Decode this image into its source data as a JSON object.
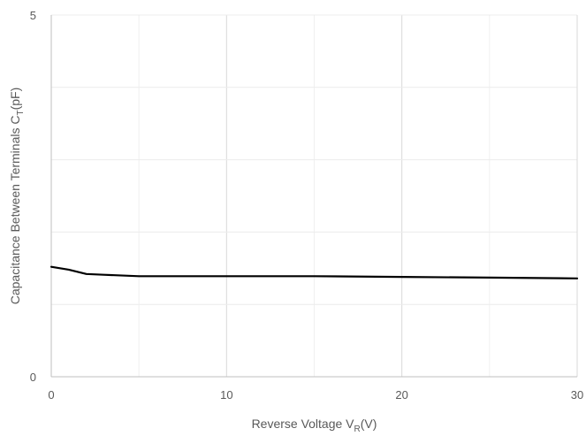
{
  "chart_data": {
    "type": "line",
    "xlabel": {
      "main": "Reverse Voltage V",
      "sub": "R",
      "suffix": "(V)"
    },
    "ylabel": {
      "main": "Capacitance Between Terminals C",
      "sub": "T",
      "suffix": "(pF)"
    },
    "xlim": [
      0,
      30
    ],
    "ylim": [
      0,
      5
    ],
    "x_ticks": [
      0,
      10,
      20,
      30
    ],
    "y_ticks": [
      0,
      5
    ],
    "x_tick_labels": [
      "0",
      "10",
      "20",
      "30"
    ],
    "y_tick_labels": [
      "0",
      "5"
    ],
    "grid": true,
    "series": [
      {
        "color": "#000000",
        "x": [
          0,
          1,
          2,
          3,
          5,
          10,
          15,
          20,
          25,
          30
        ],
        "y": [
          1.52,
          1.48,
          1.42,
          1.41,
          1.39,
          1.39,
          1.39,
          1.38,
          1.37,
          1.36
        ]
      }
    ]
  }
}
